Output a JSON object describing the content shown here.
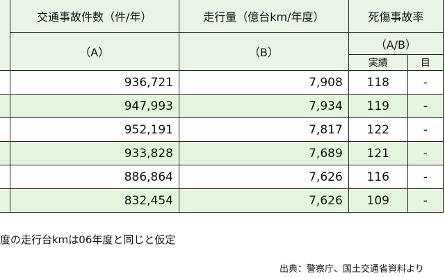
{
  "table": {
    "headers": {
      "accidents": "交通事故件数（件/年）",
      "distance": "走行量（億台km/年度）",
      "rate": "死傷事故率"
    },
    "subheaders": {
      "accidents": "（A）",
      "distance": "（B）",
      "rate": "（A/B）"
    },
    "rate_columns": [
      "実績",
      "目"
    ],
    "rows": [
      {
        "accidents": "936,721",
        "distance": "7,908",
        "actual": "118",
        "target": "-"
      },
      {
        "accidents": "947,993",
        "distance": "7,934",
        "actual": "119",
        "target": "-"
      },
      {
        "accidents": "952,191",
        "distance": "7,817",
        "actual": "122",
        "target": "-"
      },
      {
        "accidents": "933,828",
        "distance": "7,689",
        "actual": "121",
        "target": "-"
      },
      {
        "accidents": "886,864",
        "distance": "7,626",
        "actual": "116",
        "target": "-"
      },
      {
        "accidents": "832,454",
        "distance": "7,626",
        "actual": "109",
        "target": "-"
      }
    ]
  },
  "note": "度の走行台kmは06年度と同じと仮定",
  "source": "出典：警察庁、国土交通省資料より"
}
